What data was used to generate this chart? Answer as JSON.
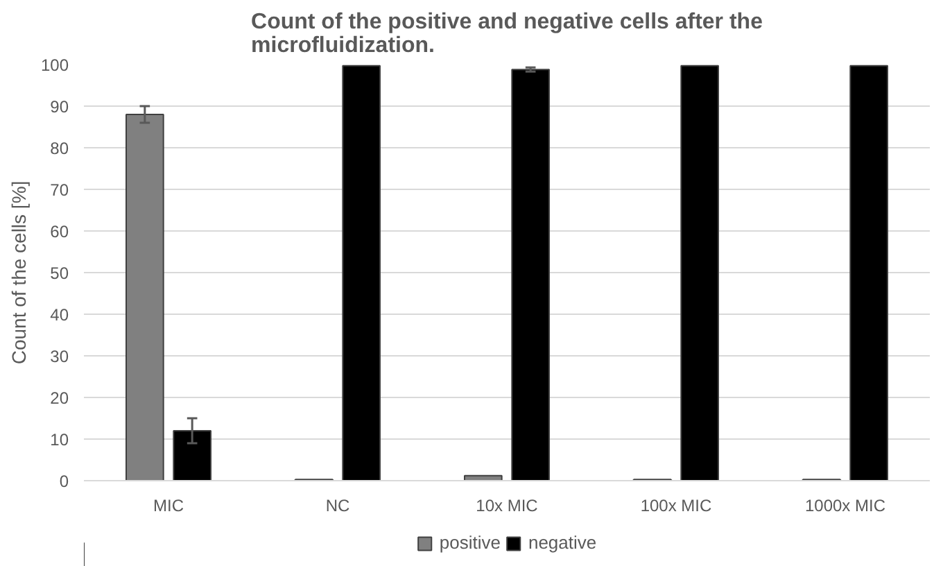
{
  "chart_data": {
    "type": "bar",
    "title": "Count of the positive and negative cells after the\nmicrofluidization.",
    "ylabel": "Count of the cells [%]",
    "categories": [
      "MIC",
      "NC",
      "10x MIC",
      "100x MIC",
      "1000x MIC"
    ],
    "series": [
      {
        "name": "positive",
        "color": "#808080",
        "values": [
          88,
          0.3,
          1.2,
          0.3,
          0.3
        ],
        "errors": [
          2,
          null,
          null,
          null,
          null
        ]
      },
      {
        "name": "negative",
        "color": "#000000",
        "values": [
          12,
          99.7,
          98.8,
          99.7,
          99.7
        ],
        "errors": [
          3,
          null,
          0.5,
          null,
          null
        ]
      }
    ],
    "ylim": [
      0,
      100
    ],
    "yticks": [
      0,
      10,
      20,
      30,
      40,
      50,
      60,
      70,
      80,
      90,
      100
    ],
    "grid": "y",
    "legend": "bottom"
  }
}
